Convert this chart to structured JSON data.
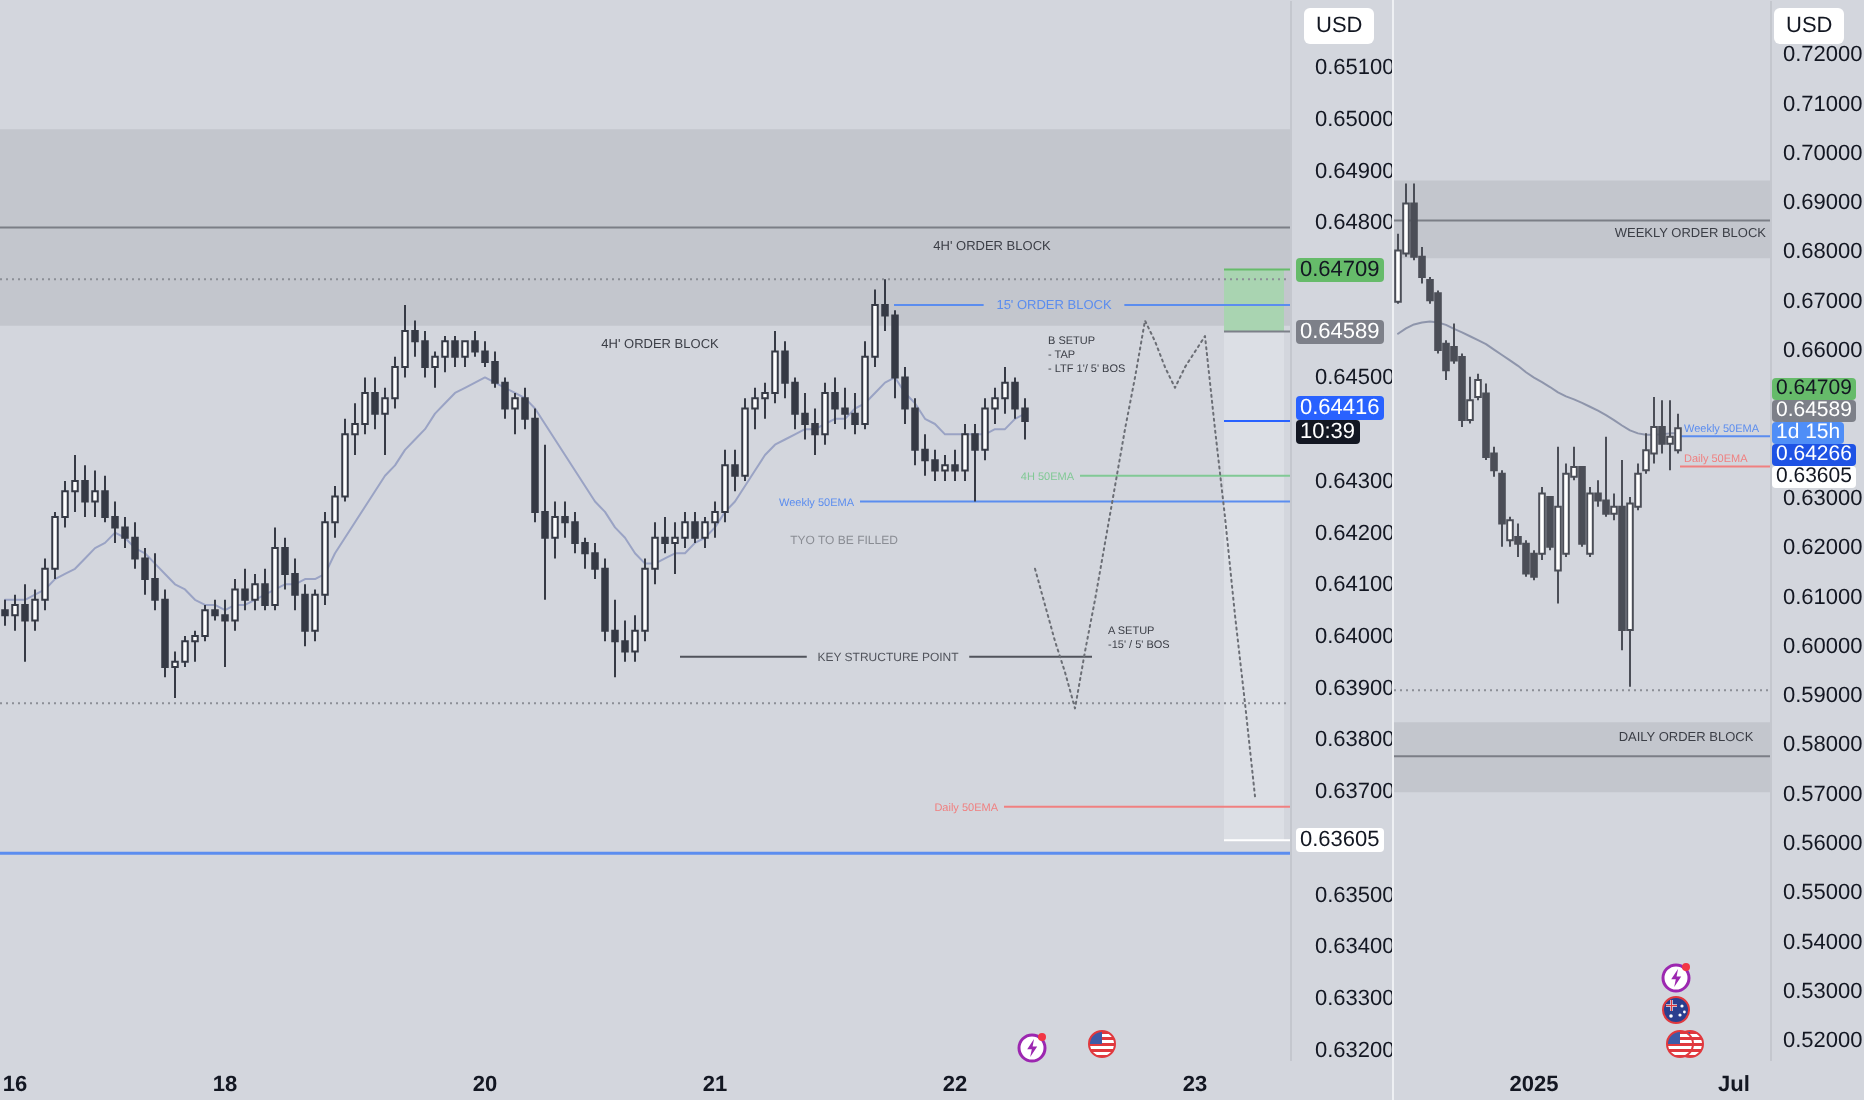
{
  "chart_data": [
    {
      "type": "candlestick",
      "ylabel": "USD",
      "color": "#363a45",
      "categories": [
        null,
        "16",
        null,
        null,
        null,
        null,
        null,
        null,
        null,
        null,
        null,
        null,
        null,
        null,
        null,
        null,
        null,
        null,
        null,
        null,
        null,
        null,
        "18",
        null,
        null,
        null,
        null,
        null,
        null,
        null,
        null,
        null,
        null,
        null,
        null,
        null,
        null,
        null,
        null,
        null,
        null,
        null,
        null,
        null,
        null,
        null,
        null,
        null,
        "20",
        null,
        null,
        null,
        null,
        null,
        null,
        null,
        null,
        null,
        null,
        null,
        null,
        null,
        null,
        null,
        null,
        null,
        null,
        null,
        null,
        null,
        null,
        "21",
        null,
        null,
        null,
        null,
        null,
        null,
        null,
        null,
        null,
        null,
        null,
        null,
        null,
        null,
        null,
        null,
        null,
        null,
        null,
        null,
        null,
        null,
        null,
        "22",
        null,
        null,
        null,
        null,
        null,
        null,
        null,
        null,
        null,
        null,
        null,
        null,
        null,
        null,
        null,
        null,
        null,
        null,
        null,
        null,
        null,
        null,
        null,
        "23",
        null,
        null,
        null,
        null,
        null,
        null,
        null,
        null,
        null
      ],
      "ohlc": [
        [
          0.6405,
          0.6407,
          0.6402,
          0.6404
        ],
        [
          0.6404,
          0.6408,
          0.6401,
          0.6406
        ],
        [
          0.6406,
          0.641,
          0.6395,
          0.6403
        ],
        [
          0.6403,
          0.6409,
          0.6401,
          0.6407
        ],
        [
          0.6407,
          0.6415,
          0.6405,
          0.6413
        ],
        [
          0.6413,
          0.6424,
          0.6411,
          0.6423
        ],
        [
          0.6423,
          0.643,
          0.6421,
          0.6428
        ],
        [
          0.6428,
          0.6435,
          0.6424,
          0.643
        ],
        [
          0.643,
          0.6433,
          0.6423,
          0.6426
        ],
        [
          0.6426,
          0.6432,
          0.6423,
          0.6428
        ],
        [
          0.6428,
          0.6431,
          0.6422,
          0.6423
        ],
        [
          0.6423,
          0.6426,
          0.6418,
          0.6421
        ],
        [
          0.6421,
          0.6423,
          0.6417,
          0.6419
        ],
        [
          0.6419,
          0.6422,
          0.6413,
          0.6415
        ],
        [
          0.6415,
          0.6417,
          0.6408,
          0.6411
        ],
        [
          0.6411,
          0.6416,
          0.6405,
          0.6407
        ],
        [
          0.6407,
          0.6409,
          0.6392,
          0.6394
        ],
        [
          0.6394,
          0.6397,
          0.6388,
          0.6395
        ],
        [
          0.6395,
          0.64,
          0.6394,
          0.6399
        ],
        [
          0.6399,
          0.6401,
          0.6395,
          0.64
        ],
        [
          0.64,
          0.6406,
          0.6399,
          0.6405
        ],
        [
          0.6405,
          0.6407,
          0.6403,
          0.6404
        ],
        [
          0.6404,
          0.6407,
          0.6394,
          0.6403
        ],
        [
          0.6403,
          0.6411,
          0.6401,
          0.6409
        ],
        [
          0.6409,
          0.6413,
          0.6405,
          0.6407
        ],
        [
          0.6407,
          0.6412,
          0.6405,
          0.641
        ],
        [
          0.641,
          0.6413,
          0.6405,
          0.6406
        ],
        [
          0.6406,
          0.6421,
          0.6405,
          0.6417
        ],
        [
          0.6417,
          0.6419,
          0.6409,
          0.6412
        ],
        [
          0.6412,
          0.6415,
          0.6405,
          0.6408
        ],
        [
          0.6408,
          0.641,
          0.6398,
          0.6401
        ],
        [
          0.6401,
          0.6409,
          0.6399,
          0.6408
        ],
        [
          0.6408,
          0.6424,
          0.6406,
          0.6422
        ],
        [
          0.6422,
          0.6429,
          0.6419,
          0.6427
        ],
        [
          0.6427,
          0.6442,
          0.6426,
          0.6439
        ],
        [
          0.6439,
          0.6445,
          0.6435,
          0.6441
        ],
        [
          0.6441,
          0.645,
          0.6439,
          0.6447
        ],
        [
          0.6447,
          0.645,
          0.644,
          0.6443
        ],
        [
          0.6443,
          0.6448,
          0.6435,
          0.6446
        ],
        [
          0.6446,
          0.6454,
          0.6444,
          0.6452
        ],
        [
          0.6452,
          0.6464,
          0.645,
          0.6459
        ],
        [
          0.6459,
          0.6461,
          0.6454,
          0.6457
        ],
        [
          0.6457,
          0.6459,
          0.645,
          0.6452
        ],
        [
          0.6452,
          0.6455,
          0.6448,
          0.6454
        ],
        [
          0.6454,
          0.6458,
          0.6451,
          0.6457
        ],
        [
          0.6457,
          0.6458,
          0.6452,
          0.6454
        ],
        [
          0.6454,
          0.6457,
          0.6452,
          0.6457
        ],
        [
          0.6457,
          0.6459,
          0.6454,
          0.6455
        ],
        [
          0.6455,
          0.6457,
          0.6452,
          0.6453
        ],
        [
          0.6453,
          0.6455,
          0.6448,
          0.6449
        ],
        [
          0.6449,
          0.645,
          0.6442,
          0.6444
        ],
        [
          0.6444,
          0.6447,
          0.6439,
          0.6446
        ],
        [
          0.6446,
          0.6448,
          0.644,
          0.6442
        ],
        [
          0.6442,
          0.6444,
          0.6422,
          0.6424
        ],
        [
          0.6424,
          0.6437,
          0.6407,
          0.6419
        ],
        [
          0.6419,
          0.6426,
          0.6415,
          0.6423
        ],
        [
          0.6423,
          0.6426,
          0.6419,
          0.6422
        ],
        [
          0.6422,
          0.6424,
          0.6416,
          0.6418
        ],
        [
          0.6418,
          0.6419,
          0.6413,
          0.6416
        ],
        [
          0.6416,
          0.6418,
          0.6411,
          0.6413
        ],
        [
          0.6413,
          0.6415,
          0.6399,
          0.6401
        ],
        [
          0.6401,
          0.6407,
          0.6392,
          0.6399
        ],
        [
          0.6399,
          0.6403,
          0.6395,
          0.6397
        ],
        [
          0.6397,
          0.6404,
          0.6395,
          0.6401
        ],
        [
          0.6401,
          0.6415,
          0.6399,
          0.6413
        ],
        [
          0.6413,
          0.6422,
          0.641,
          0.6419
        ],
        [
          0.6419,
          0.6423,
          0.6416,
          0.6418
        ],
        [
          0.6418,
          0.6422,
          0.6412,
          0.6419
        ],
        [
          0.6419,
          0.6424,
          0.6417,
          0.6422
        ],
        [
          0.6422,
          0.6424,
          0.6418,
          0.6419
        ],
        [
          0.6419,
          0.6423,
          0.6417,
          0.6422
        ],
        [
          0.6422,
          0.6426,
          0.6419,
          0.6424
        ],
        [
          0.6424,
          0.6436,
          0.6422,
          0.6433
        ],
        [
          0.6433,
          0.6436,
          0.6428,
          0.6431
        ],
        [
          0.6431,
          0.6446,
          0.643,
          0.6444
        ],
        [
          0.6444,
          0.6448,
          0.644,
          0.6446
        ],
        [
          0.6446,
          0.6449,
          0.6442,
          0.6447
        ],
        [
          0.6447,
          0.6459,
          0.6445,
          0.6455
        ],
        [
          0.6455,
          0.6457,
          0.6446,
          0.6449
        ],
        [
          0.6449,
          0.645,
          0.644,
          0.6443
        ],
        [
          0.6443,
          0.6447,
          0.6438,
          0.6441
        ],
        [
          0.6441,
          0.6444,
          0.6435,
          0.6439
        ],
        [
          0.6439,
          0.6449,
          0.6437,
          0.6447
        ],
        [
          0.6447,
          0.645,
          0.6441,
          0.6444
        ],
        [
          0.6444,
          0.6448,
          0.644,
          0.6443
        ],
        [
          0.6443,
          0.6447,
          0.6439,
          0.6441
        ],
        [
          0.6441,
          0.6457,
          0.644,
          0.6454
        ],
        [
          0.6454,
          0.6467,
          0.6452,
          0.6464
        ],
        [
          0.6464,
          0.6469,
          0.6459,
          0.6462
        ],
        [
          0.6462,
          0.6463,
          0.6446,
          0.645
        ],
        [
          0.645,
          0.6452,
          0.6441,
          0.6444
        ],
        [
          0.6444,
          0.6446,
          0.6433,
          0.6436
        ],
        [
          0.6436,
          0.6439,
          0.6431,
          0.6434
        ],
        [
          0.6434,
          0.6436,
          0.643,
          0.6432
        ],
        [
          0.6432,
          0.6435,
          0.643,
          0.6433
        ],
        [
          0.6433,
          0.6436,
          0.643,
          0.6432
        ],
        [
          0.6432,
          0.6441,
          0.643,
          0.6439
        ],
        [
          0.6439,
          0.6441,
          0.6426,
          0.6436
        ],
        [
          0.6436,
          0.6446,
          0.6434,
          0.6444
        ],
        [
          0.6444,
          0.6448,
          0.6441,
          0.6446
        ],
        [
          0.6446,
          0.6452,
          0.6443,
          0.6449
        ],
        [
          0.6449,
          0.645,
          0.6442,
          0.6444
        ],
        [
          0.6444,
          0.6446,
          0.6438,
          0.64416
        ],
        null,
        null,
        null,
        null,
        null,
        null,
        null,
        null,
        null,
        null,
        null,
        null,
        null,
        null,
        null,
        null,
        null,
        null,
        null,
        null,
        null,
        null,
        null,
        null,
        null,
        null
      ],
      "series": [
        {
          "type": "line",
          "color": "#9aa3c4",
          "values": [
            0.6407,
            0.6407,
            0.6407,
            0.6408,
            0.6409,
            0.6411,
            0.6412,
            0.6413,
            0.6415,
            0.6417,
            0.6418,
            0.642,
            0.6419,
            0.6417,
            0.6416,
            0.6414,
            0.6412,
            0.641,
            0.6409,
            0.6407,
            0.6406,
            0.6406,
            0.6405,
            0.6406,
            0.6406,
            0.6407,
            0.6408,
            0.6409,
            0.641,
            0.641,
            0.6411,
            0.6411,
            0.6412,
            0.6416,
            0.6419,
            0.6422,
            0.6425,
            0.6428,
            0.6431,
            0.6433,
            0.6436,
            0.6438,
            0.644,
            0.6443,
            0.6445,
            0.6447,
            0.6448,
            0.6449,
            0.645,
            0.6449,
            0.6448,
            0.6447,
            0.6446,
            0.6444,
            0.6441,
            0.6438,
            0.6435,
            0.6432,
            0.6429,
            0.6426,
            0.6424,
            0.6421,
            0.6419,
            0.6416,
            0.6414,
            0.6414,
            0.6415,
            0.6416,
            0.6416,
            0.6418,
            0.6419,
            0.6421,
            0.6424,
            0.6426,
            0.6429,
            0.6432,
            0.6435,
            0.6437,
            0.6438,
            0.6439,
            0.644,
            0.644,
            0.6441,
            0.6442,
            0.6442,
            0.6444,
            0.6445,
            0.6447,
            0.6449,
            0.645,
            0.6447,
            0.6445,
            0.6442,
            0.6441,
            0.6439,
            0.6439,
            0.6439,
            0.6439,
            0.6439,
            0.644,
            0.644,
            0.6442,
            0.6443,
            null,
            null,
            null,
            null,
            null,
            null,
            null,
            null,
            null,
            null,
            null,
            null,
            null,
            null,
            null,
            null,
            null,
            null,
            null,
            null,
            null,
            null,
            null,
            null,
            null,
            null
          ]
        },
        {
          "type": "line",
          "color": "#6b6e75",
          "line_style": "dotted",
          "values": [
            null,
            null,
            null,
            null,
            null,
            null,
            null,
            null,
            null,
            null,
            null,
            null,
            null,
            null,
            null,
            null,
            null,
            null,
            null,
            null,
            null,
            null,
            null,
            null,
            null,
            null,
            null,
            null,
            null,
            null,
            null,
            null,
            null,
            null,
            null,
            null,
            null,
            null,
            null,
            null,
            null,
            null,
            null,
            null,
            null,
            null,
            null,
            null,
            null,
            null,
            null,
            null,
            null,
            null,
            null,
            null,
            null,
            null,
            null,
            null,
            null,
            null,
            null,
            null,
            null,
            null,
            null,
            null,
            null,
            null,
            null,
            null,
            null,
            null,
            null,
            null,
            null,
            null,
            null,
            null,
            null,
            null,
            null,
            null,
            null,
            null,
            null,
            null,
            null,
            null,
            null,
            null,
            null,
            null,
            null,
            null,
            null,
            null,
            null,
            null,
            null,
            null,
            null,
            0.6413,
            0.6406,
            0.6399,
            0.6393,
            0.6386,
            0.6397,
            0.6407,
            0.6418,
            0.6429,
            0.644,
            0.645,
            0.6461,
            0.6457,
            0.6452,
            0.6448,
            0.6452,
            0.6455,
            0.6458,
            0.644,
            0.6423,
            0.6404,
            0.6387,
            0.6369,
            null,
            null,
            null
          ]
        }
      ],
      "ylim": [
        0.6318,
        0.6523
      ],
      "yticks": [
        {
          "value": 0.632,
          "label": "0.63200"
        },
        {
          "value": 0.633,
          "label": "0.63300"
        },
        {
          "value": 0.634,
          "label": "0.63400"
        },
        {
          "value": 0.635,
          "label": "0.63500"
        },
        {
          "value": 0.637,
          "label": "0.63700"
        },
        {
          "value": 0.638,
          "label": "0.63800"
        },
        {
          "value": 0.639,
          "label": "0.63900"
        },
        {
          "value": 0.64,
          "label": "0.64000"
        },
        {
          "value": 0.641,
          "label": "0.64100"
        },
        {
          "value": 0.642,
          "label": "0.64200"
        },
        {
          "value": 0.643,
          "label": "0.64300"
        },
        {
          "value": 0.645,
          "label": "0.64500"
        },
        {
          "value": 0.648,
          "label": "0.64800"
        },
        {
          "value": 0.649,
          "label": "0.64900"
        },
        {
          "value": 0.65,
          "label": "0.65000"
        },
        {
          "value": 0.651,
          "label": "0.65100"
        }
      ],
      "bands": [
        {
          "axis": "y",
          "from": 0.646,
          "to": 0.6498,
          "label": "4H' ORDER BLOCK",
          "color": "#c3c6cd"
        },
        {
          "axis": "y",
          "from": 0.64589,
          "to": 0.64709,
          "color": "#a9d4b1"
        },
        {
          "axis": "y",
          "from": 0.63605,
          "to": 0.64589,
          "color": "#dcdfe5"
        }
      ],
      "ref_lines": [
        {
          "axis": "y",
          "value": 0.6479,
          "color": "#7b7e86"
        },
        {
          "axis": "y",
          "value": 0.6469,
          "color": "#8c8f96",
          "line_style": "dotted"
        },
        {
          "axis": "y",
          "value": 0.6464,
          "label": "15' ORDER BLOCK",
          "color": "#5b8def"
        },
        {
          "axis": "y",
          "value": 0.6431,
          "label": "4H 50EMA",
          "color": "#81c995"
        },
        {
          "axis": "y",
          "value": 0.6426,
          "label": "Weekly 50EMA",
          "color": "#5b8def"
        },
        {
          "axis": "y",
          "value": 0.6396,
          "label": "KEY STRUCTURE POINT",
          "color": "#50535b"
        },
        {
          "axis": "y",
          "value": 0.6387,
          "color": "#8c8f96",
          "line_style": "dotted"
        },
        {
          "axis": "y",
          "value": 0.6367,
          "label": "Daily 50EMA",
          "color": "#f08080"
        },
        {
          "axis": "y",
          "value": 0.6358,
          "color": "#5b8def"
        },
        {
          "axis": "y",
          "value": 0.64709,
          "label": "0.64709",
          "color": "#66bb6a"
        },
        {
          "axis": "y",
          "value": 0.64589,
          "label": "0.64589",
          "color": "#7d8089"
        },
        {
          "axis": "y",
          "value": 0.64416,
          "label": "0.64416",
          "color": "#2962ff"
        },
        {
          "axis": "y",
          "value": 0.63605,
          "label": "0.63605",
          "color": "#ffffff"
        }
      ],
      "annotations": [
        "4H' ORDER BLOCK",
        "TYO TO BE FILLED",
        "B SETUP\n- TAP\n- LTF 1'/ 5' BOS",
        "A SETUP\n-15' / 5' BOS",
        "10:39"
      ]
    },
    {
      "type": "candlestick",
      "ylabel": "USD",
      "color": "#4b4e57",
      "categories": [
        null,
        null,
        null,
        null,
        null,
        null,
        null,
        null,
        null,
        null,
        null,
        null,
        null,
        null,
        null,
        null,
        null,
        "2025",
        null,
        null,
        null,
        null,
        null,
        null,
        null,
        null,
        null,
        null,
        null,
        null,
        null,
        null,
        null,
        null,
        null,
        null,
        null,
        null,
        null,
        null,
        null,
        null,
        "Jul",
        null,
        null,
        null,
        null
      ],
      "ohlc": [
        [
          0.6698,
          0.6836,
          0.6694,
          0.6802
        ],
        [
          0.6796,
          0.6938,
          0.6789,
          0.6897
        ],
        [
          0.6897,
          0.6938,
          0.6782,
          0.6789
        ],
        [
          0.6789,
          0.6809,
          0.6735,
          0.6748
        ],
        [
          0.6742,
          0.6748,
          0.6694,
          0.6701
        ],
        [
          0.6715,
          0.6721,
          0.6593,
          0.66
        ],
        [
          0.6613,
          0.662,
          0.6539,
          0.6559
        ],
        [
          0.6606,
          0.6654,
          0.6572,
          0.6579
        ],
        [
          0.6586,
          0.6593,
          0.6444,
          0.6458
        ],
        [
          0.6458,
          0.6546,
          0.6451,
          0.6498
        ],
        [
          0.6505,
          0.6552,
          0.6498,
          0.6539
        ],
        [
          0.6512,
          0.6532,
          0.6377,
          0.6383
        ],
        [
          0.639,
          0.6404,
          0.6343,
          0.6356
        ],
        [
          0.6349,
          0.6356,
          0.6201,
          0.6248
        ],
        [
          0.6214,
          0.6262,
          0.6201,
          0.6255
        ],
        [
          0.6221,
          0.6248,
          0.618,
          0.6207
        ],
        [
          0.6207,
          0.6214,
          0.614,
          0.6147
        ],
        [
          0.6187,
          0.6194,
          0.6133,
          0.614
        ],
        [
          0.6187,
          0.6322,
          0.6174,
          0.6309
        ],
        [
          0.6302,
          0.6302,
          0.6194,
          0.6201
        ],
        [
          0.6153,
          0.6404,
          0.6086,
          0.6282
        ],
        [
          0.6187,
          0.637,
          0.618,
          0.6349
        ],
        [
          0.6343,
          0.6404,
          0.6336,
          0.6363
        ],
        [
          0.6363,
          0.6363,
          0.6201,
          0.6207
        ],
        [
          0.6187,
          0.6322,
          0.618,
          0.6309
        ],
        [
          0.6309,
          0.6336,
          0.6282,
          0.6295
        ],
        [
          0.6295,
          0.6424,
          0.6262,
          0.6268
        ],
        [
          0.6268,
          0.6309,
          0.6255,
          0.6282
        ],
        [
          0.6282,
          0.6377,
          0.5991,
          0.6032
        ],
        [
          0.6032,
          0.6302,
          0.5917,
          0.6289
        ],
        [
          0.6282,
          0.637,
          0.6275,
          0.6349
        ],
        [
          0.6356,
          0.6431,
          0.6349,
          0.6397
        ],
        [
          0.639,
          0.6505,
          0.637,
          0.6444
        ],
        [
          0.6444,
          0.6498,
          0.639,
          0.641
        ],
        [
          0.641,
          0.6498,
          0.6356,
          0.6424
        ],
        [
          0.6397,
          0.6471,
          0.639,
          0.64416
        ],
        null,
        null,
        null,
        null,
        null,
        null,
        null,
        null,
        null,
        null,
        null
      ],
      "series": [
        {
          "type": "line",
          "color": "#8e95ab",
          "values": [
            0.6633,
            0.6644,
            0.6652,
            0.6656,
            0.6658,
            0.6656,
            0.6651,
            0.6643,
            0.6636,
            0.6628,
            0.662,
            0.6612,
            0.6601,
            0.659,
            0.6579,
            0.6568,
            0.6555,
            0.6544,
            0.6535,
            0.6525,
            0.6514,
            0.6506,
            0.65,
            0.6493,
            0.6485,
            0.6477,
            0.6468,
            0.6458,
            0.6447,
            0.6437,
            0.6431,
            0.6428,
            0.6428,
            0.6429,
            0.6431,
            0.6431,
            null,
            null,
            null,
            null,
            null,
            null,
            null,
            null,
            null,
            null,
            null
          ]
        }
      ],
      "ylim": [
        0.516,
        0.731
      ],
      "yticks": [
        {
          "value": 0.52,
          "label": "0.52000"
        },
        {
          "value": 0.53,
          "label": "0.53000"
        },
        {
          "value": 0.54,
          "label": "0.54000"
        },
        {
          "value": 0.55,
          "label": "0.55000"
        },
        {
          "value": 0.56,
          "label": "0.56000"
        },
        {
          "value": 0.57,
          "label": "0.57000"
        },
        {
          "value": 0.58,
          "label": "0.58000"
        },
        {
          "value": 0.59,
          "label": "0.59000"
        },
        {
          "value": 0.6,
          "label": "0.60000"
        },
        {
          "value": 0.61,
          "label": "0.61000"
        },
        {
          "value": 0.62,
          "label": "0.62000"
        },
        {
          "value": 0.63,
          "label": "0.63000"
        },
        {
          "value": 0.66,
          "label": "0.66000"
        },
        {
          "value": 0.67,
          "label": "0.67000"
        },
        {
          "value": 0.68,
          "label": "0.68000"
        },
        {
          "value": 0.69,
          "label": "0.69000"
        },
        {
          "value": 0.7,
          "label": "0.70000"
        },
        {
          "value": 0.71,
          "label": "0.71000"
        },
        {
          "value": 0.72,
          "label": "0.72000"
        }
      ],
      "bands": [
        {
          "axis": "y",
          "from": 0.6786,
          "to": 0.6944,
          "label": "WEEKLY ORDER BLOCK",
          "color": "#c3c6cd"
        },
        {
          "axis": "y",
          "from": 0.5703,
          "to": 0.5845,
          "label": "DAILY ORDER BLOCK",
          "color": "#c3c6cd"
        }
      ],
      "ref_lines": [
        {
          "axis": "y",
          "value": 0.6863,
          "color": "#7b7e86"
        },
        {
          "axis": "y",
          "value": 0.5776,
          "color": "#7b7e86"
        },
        {
          "axis": "y",
          "value": 0.591,
          "color": "#8c8f96",
          "line_style": "dotted"
        },
        {
          "axis": "y",
          "value": 0.6425,
          "label": "Weekly 50EMA",
          "color": "#5b8def"
        },
        {
          "axis": "y",
          "value": 0.6364,
          "label": "Daily 50EMA",
          "color": "#f08080"
        }
      ],
      "annotations": [
        "0.64709",
        "0.64589",
        "1d 15h",
        "0.64266",
        "0.63605"
      ]
    }
  ]
}
